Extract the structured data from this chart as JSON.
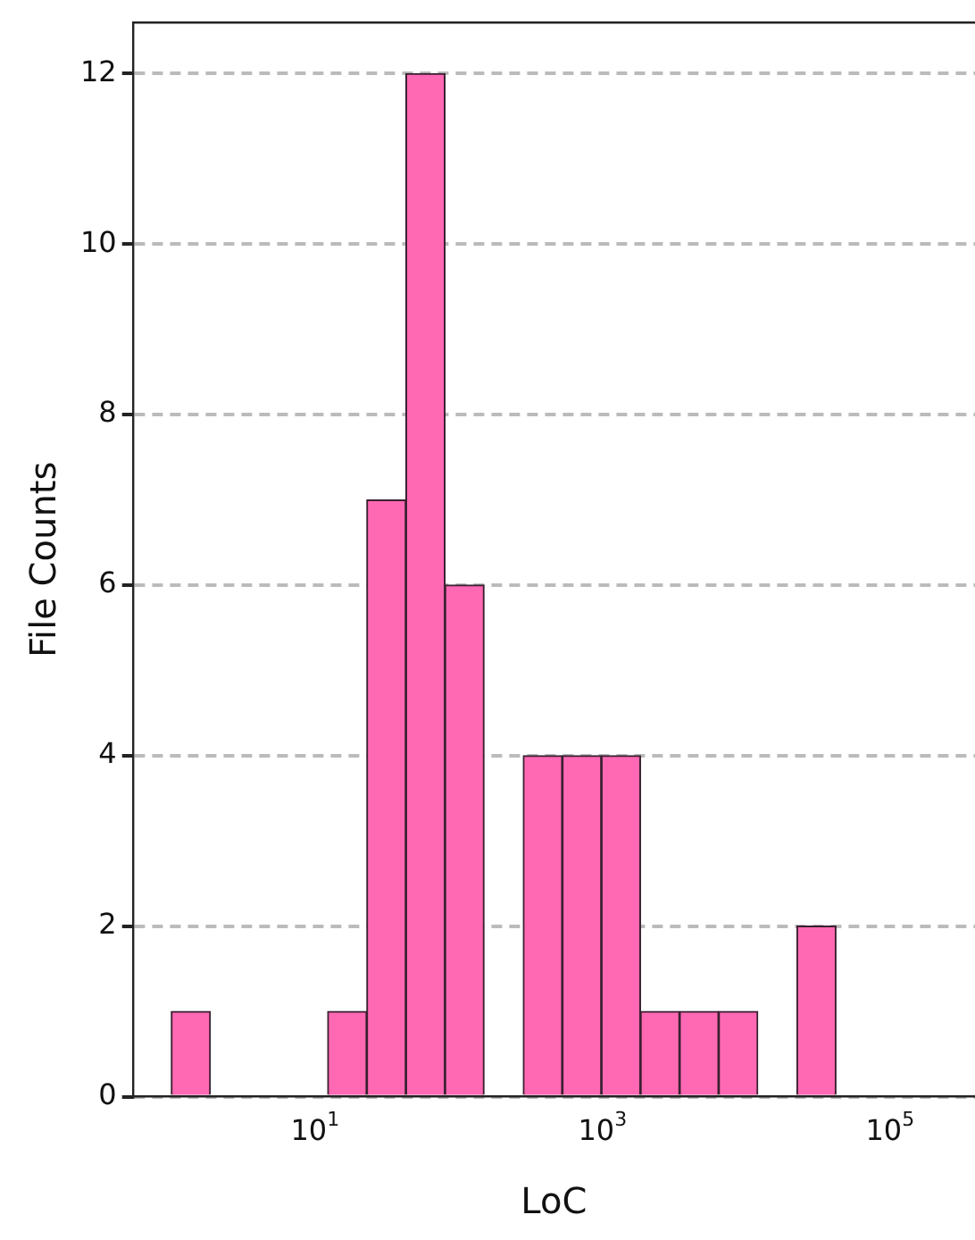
{
  "chart_data": {
    "type": "histogram",
    "xlabel": "LoC",
    "ylabel": "File Counts",
    "bins": [
      1,
      1.871,
      3.5,
      6.55,
      12.25,
      22.9,
      42.9,
      80.2,
      150,
      281,
      525,
      982,
      1837,
      3436,
      6427,
      12023,
      22491,
      42073
    ],
    "values": [
      1,
      0,
      0,
      0,
      1,
      7,
      12,
      6,
      0,
      4,
      4,
      4,
      1,
      1,
      1,
      0,
      2
    ],
    "color": "#ff69b4",
    "log": "x",
    "xlim": [
      0.54,
      390000
    ],
    "xticks": [
      {
        "value": 10,
        "label": "10$^{1}$"
      },
      {
        "value": 1000,
        "label": "10$^{3}$"
      },
      {
        "value": 100000,
        "label": "10$^{5}$"
      }
    ],
    "ylim": [
      0,
      12.6
    ],
    "yticks": [
      0,
      2,
      4,
      6,
      8,
      10,
      12
    ],
    "grid": "y",
    "line_style": "dashed",
    "legend": false
  }
}
